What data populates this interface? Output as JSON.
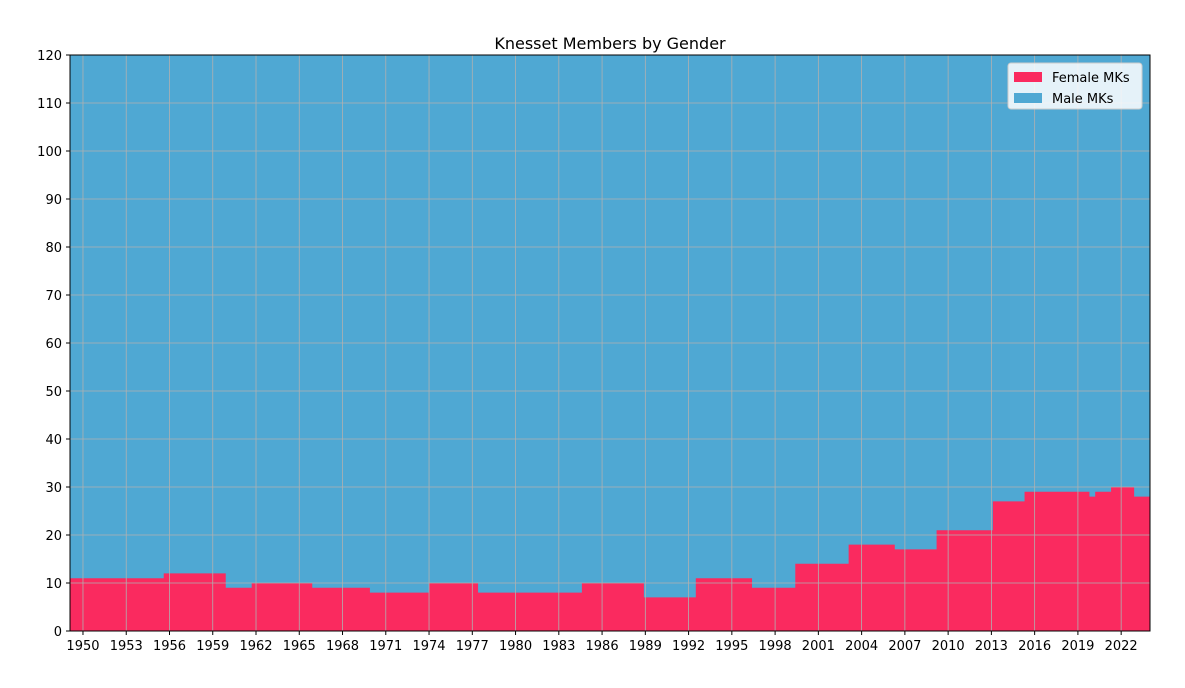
{
  "chart_data": {
    "type": "area",
    "title": "Knesset Members by Gender",
    "xlabel": "",
    "ylabel": "",
    "xlim": [
      1949.1,
      2024.0
    ],
    "ylim": [
      0,
      120
    ],
    "total_seats": 120,
    "grid": true,
    "legend_position": "top-right",
    "x_ticks": [
      1950,
      1953,
      1956,
      1959,
      1962,
      1965,
      1968,
      1971,
      1974,
      1977,
      1980,
      1983,
      1986,
      1989,
      1992,
      1995,
      1998,
      2001,
      2004,
      2007,
      2010,
      2013,
      2016,
      2019,
      2022
    ],
    "y_ticks": [
      0,
      10,
      20,
      30,
      40,
      50,
      60,
      70,
      80,
      90,
      100,
      110,
      120
    ],
    "series": [
      {
        "name": "Female MKs",
        "color": "#fa2a5f",
        "steps": [
          {
            "start": 1949.1,
            "end": 1955.6,
            "value": 11
          },
          {
            "start": 1955.6,
            "end": 1959.9,
            "value": 12
          },
          {
            "start": 1959.9,
            "end": 1961.7,
            "value": 9
          },
          {
            "start": 1961.7,
            "end": 1965.9,
            "value": 10
          },
          {
            "start": 1965.9,
            "end": 1969.9,
            "value": 9
          },
          {
            "start": 1969.9,
            "end": 1974.0,
            "value": 8
          },
          {
            "start": 1974.0,
            "end": 1977.4,
            "value": 10
          },
          {
            "start": 1977.4,
            "end": 1984.6,
            "value": 8
          },
          {
            "start": 1984.6,
            "end": 1988.9,
            "value": 10
          },
          {
            "start": 1988.9,
            "end": 1992.5,
            "value": 7
          },
          {
            "start": 1992.5,
            "end": 1996.4,
            "value": 11
          },
          {
            "start": 1996.4,
            "end": 1999.4,
            "value": 9
          },
          {
            "start": 1999.4,
            "end": 2003.1,
            "value": 14
          },
          {
            "start": 2003.1,
            "end": 2006.3,
            "value": 18
          },
          {
            "start": 2006.3,
            "end": 2009.2,
            "value": 17
          },
          {
            "start": 2009.2,
            "end": 2013.1,
            "value": 21
          },
          {
            "start": 2013.1,
            "end": 2015.3,
            "value": 27
          },
          {
            "start": 2015.3,
            "end": 2019.8,
            "value": 29
          },
          {
            "start": 2019.8,
            "end": 2020.2,
            "value": 28
          },
          {
            "start": 2020.2,
            "end": 2021.3,
            "value": 29
          },
          {
            "start": 2021.3,
            "end": 2022.9,
            "value": 30
          },
          {
            "start": 2022.9,
            "end": 2024.0,
            "value": 28
          }
        ]
      },
      {
        "name": "Male MKs",
        "color": "#4fa8d3",
        "stacked_on": "Female MKs"
      }
    ]
  }
}
